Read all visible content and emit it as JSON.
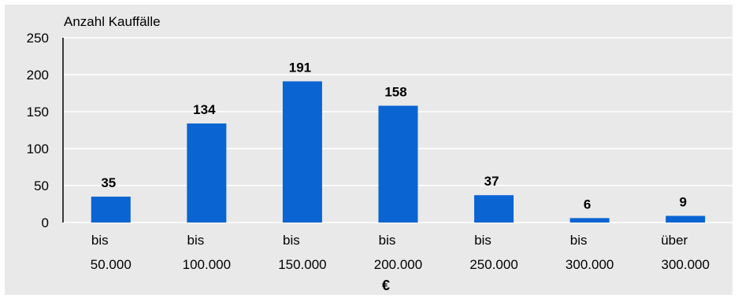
{
  "chart_data": {
    "type": "bar",
    "categories": [
      [
        "bis",
        "50.000"
      ],
      [
        "bis",
        "100.000"
      ],
      [
        "bis",
        "150.000"
      ],
      [
        "bis",
        "200.000"
      ],
      [
        "bis",
        "250.000"
      ],
      [
        "bis",
        "300.000"
      ],
      [
        "über",
        "300.000"
      ]
    ],
    "values": [
      35,
      134,
      191,
      158,
      37,
      6,
      9
    ],
    "ylabel": "Anzahl Kauffälle",
    "xlabel": "€",
    "ylim": [
      0,
      250
    ],
    "yticks": [
      0,
      50,
      100,
      150,
      200,
      250
    ],
    "grid": true,
    "bar_color": "#0a64d2",
    "background_color": "#e9e9e9",
    "grid_color": "#ffffff"
  }
}
